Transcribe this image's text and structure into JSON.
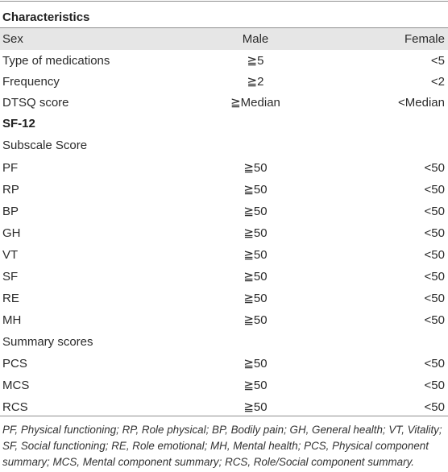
{
  "table": {
    "header": {
      "characteristics": "Characteristics"
    },
    "rows": [
      {
        "label": "Sex",
        "col1": "Male",
        "col2": "Female"
      },
      {
        "label": "Type of medications",
        "col1": "≧5",
        "col2": "<5"
      },
      {
        "label": "Frequency",
        "col1": "≧2",
        "col2": "<2"
      },
      {
        "label": "DTSQ score",
        "col1": "≧Median",
        "col2": "<Median"
      }
    ],
    "sf12": {
      "title": "SF-12",
      "subscale_label": "Subscale Score",
      "subscale_rows": [
        {
          "label": "PF",
          "col1": "≧50",
          "col2": "<50"
        },
        {
          "label": "RP",
          "col1": "≧50",
          "col2": "<50"
        },
        {
          "label": "BP",
          "col1": "≧50",
          "col2": "<50"
        },
        {
          "label": "GH",
          "col1": "≧50",
          "col2": "<50"
        },
        {
          "label": "VT",
          "col1": "≧50",
          "col2": "<50"
        },
        {
          "label": "SF",
          "col1": "≧50",
          "col2": "<50"
        },
        {
          "label": "RE",
          "col1": "≧50",
          "col2": "<50"
        },
        {
          "label": "MH",
          "col1": "≧50",
          "col2": "<50"
        }
      ],
      "summary_label": "Summary scores",
      "summary_rows": [
        {
          "label": "PCS",
          "col1": "≧50",
          "col2": "<50"
        },
        {
          "label": "MCS",
          "col1": "≧50",
          "col2": "<50"
        },
        {
          "label": "RCS",
          "col1": "≧50",
          "col2": "<50"
        }
      ]
    }
  },
  "footnote": {
    "line1": "PF, Physical functioning; RP, Role physical; BP, Bodily pain; GH, General health; VT, Vitality;",
    "line2": "SF, Social functioning; RE, Role emotional; MH, Mental health; PCS, Physical component",
    "line3": "summary; MCS, Mental component summary; RCS, Role/Social component summary."
  },
  "colors": {
    "shade": "#e6e6e6",
    "rule": "#8f8f8f",
    "text": "#2b2b2b"
  }
}
